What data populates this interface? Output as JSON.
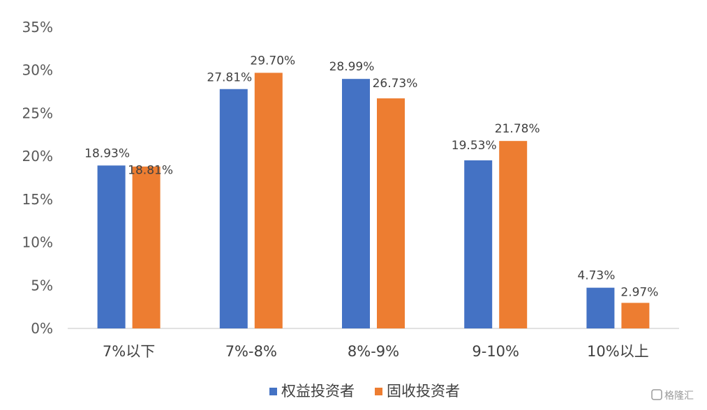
{
  "chart_data": {
    "type": "bar",
    "title": "",
    "xlabel": "",
    "ylabel": "",
    "categories": [
      "7%以下",
      "7%-8%",
      "8%-9%",
      "9-10%",
      "10%以上"
    ],
    "series": [
      {
        "name": "权益投资者",
        "color": "#4472C4",
        "values": [
          18.93,
          27.81,
          28.99,
          19.53,
          4.73
        ],
        "labels": [
          "18.93%",
          "27.81%",
          "28.99%",
          "19.53%",
          "4.73%"
        ]
      },
      {
        "name": "固收投资者",
        "color": "#ED7D31",
        "values": [
          18.81,
          29.7,
          26.73,
          21.78,
          2.97
        ],
        "labels": [
          "18.81%",
          "29.70%",
          "26.73%",
          "21.78%",
          "2.97%"
        ]
      }
    ],
    "y_ticks": [
      "0%",
      "5%",
      "10%",
      "15%",
      "20%",
      "25%",
      "30%",
      "35%"
    ],
    "ylim": [
      0,
      35
    ],
    "grid": false,
    "legend": "bottom-center"
  },
  "watermark": {
    "text": "格隆汇"
  }
}
